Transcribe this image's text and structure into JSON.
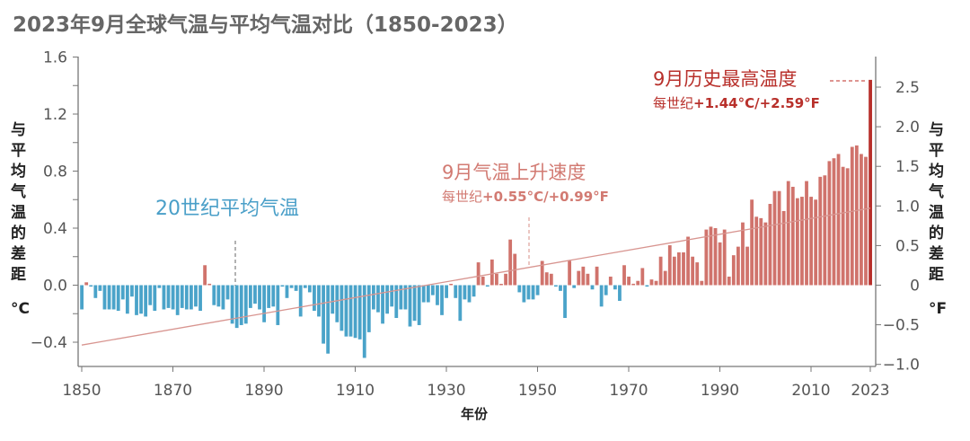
{
  "chart_data": {
    "type": "bar",
    "title": "2023年9月全球气温与平均气温对比（1850-2023）",
    "xlabel": "年份",
    "ylabel_left": "与平均气温的差距",
    "ylabel_left_unit": "°C",
    "ylabel_right": "与平均气温的差距",
    "ylabel_right_unit": "°F",
    "x_start": 1850,
    "x_end": 2023,
    "ylim": [
      -0.56,
      1.6
    ],
    "yticks_left": [
      "1.6",
      "1.2",
      "0.8",
      "0.4",
      "0.0",
      "−0.4"
    ],
    "yticks_left_values": [
      1.6,
      1.2,
      0.8,
      0.4,
      0.0,
      -0.4
    ],
    "yticks_right": [
      "2.5",
      "2.0",
      "1.5",
      "1.0",
      "0.5",
      "0",
      "−0.5",
      "−1.0"
    ],
    "yticks_right_values": [
      2.5,
      2.0,
      1.5,
      1.0,
      0.5,
      0,
      -0.5,
      -1.0
    ],
    "xticks": [
      "1850",
      "1870",
      "1890",
      "1910",
      "1930",
      "1950",
      "1970",
      "1990",
      "2010",
      "2023"
    ],
    "xticks_values": [
      1850,
      1870,
      1890,
      1910,
      1930,
      1950,
      1970,
      1990,
      2010,
      2023
    ],
    "grid": false,
    "colors": {
      "negative": "#4aa3c9",
      "positive": "#d0736c",
      "record": "#b8302b",
      "trend": "#d89590"
    },
    "values": [
      -0.17,
      0.02,
      -0.01,
      -0.09,
      -0.04,
      -0.17,
      -0.17,
      -0.17,
      -0.18,
      -0.1,
      -0.2,
      -0.08,
      -0.21,
      -0.2,
      -0.22,
      -0.14,
      -0.18,
      -0.02,
      -0.17,
      -0.16,
      -0.17,
      -0.21,
      -0.16,
      -0.17,
      -0.17,
      -0.15,
      -0.18,
      0.14,
      0.01,
      -0.14,
      -0.15,
      -0.17,
      -0.1,
      -0.27,
      -0.3,
      -0.28,
      -0.27,
      -0.16,
      -0.13,
      -0.17,
      -0.26,
      -0.16,
      -0.15,
      -0.28,
      -0.01,
      -0.09,
      -0.02,
      -0.04,
      -0.22,
      -0.02,
      -0.05,
      -0.18,
      -0.22,
      -0.41,
      -0.48,
      -0.2,
      -0.26,
      -0.32,
      -0.36,
      -0.36,
      -0.37,
      -0.38,
      -0.51,
      -0.33,
      -0.17,
      -0.19,
      -0.27,
      -0.2,
      -0.15,
      -0.23,
      -0.17,
      -0.17,
      -0.29,
      -0.25,
      -0.28,
      -0.12,
      -0.12,
      -0.07,
      -0.14,
      -0.21,
      -0.09,
      0.0,
      -0.09,
      -0.25,
      -0.1,
      -0.12,
      -0.08,
      0.16,
      0.06,
      -0.01,
      0.18,
      0.08,
      0.0,
      0.08,
      0.32,
      0.22,
      -0.05,
      -0.12,
      -0.1,
      -0.1,
      -0.07,
      0.17,
      0.09,
      0.08,
      -0.01,
      -0.04,
      -0.23,
      0.17,
      -0.02,
      0.1,
      0.13,
      0.08,
      -0.03,
      0.13,
      -0.15,
      -0.07,
      0.06,
      -0.03,
      -0.11,
      0.14,
      0.06,
      0.01,
      0.03,
      0.12,
      -0.01,
      0.04,
      0.03,
      0.2,
      0.1,
      0.28,
      0.2,
      0.23,
      0.23,
      0.34,
      0.2,
      0.16,
      0.03,
      0.39,
      0.41,
      0.4,
      0.3,
      0.39,
      0.06,
      0.21,
      0.27,
      0.44,
      0.27,
      0.6,
      0.48,
      0.47,
      0.44,
      0.57,
      0.66,
      0.66,
      0.52,
      0.73,
      0.69,
      0.61,
      0.62,
      0.73,
      0.62,
      0.6,
      0.76,
      0.77,
      0.87,
      0.89,
      0.92,
      0.83,
      0.82,
      0.97,
      0.98,
      0.92,
      0.9,
      1.44
    ],
    "trend_line": {
      "x": [
        1850,
        2023
      ],
      "y": [
        -0.42,
        0.54
      ]
    },
    "annotations": {
      "baseline": {
        "label": "20世纪平均气温",
        "year": 1884
      },
      "rate": {
        "label": "9月气温上升速度",
        "sub_prefix": "每世纪",
        "sub_value": "+0.55°C/+0.99°F",
        "year": 1948
      },
      "record": {
        "label": "9月历史最高温度",
        "sub_prefix": "每世纪",
        "sub_value": "+1.44°C/+2.59°F",
        "year": 2023
      }
    }
  }
}
